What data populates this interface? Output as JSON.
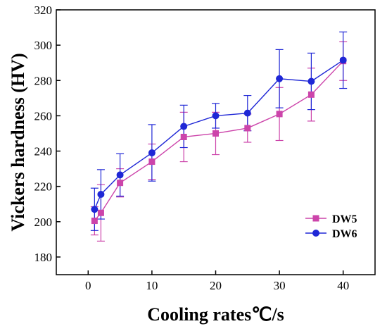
{
  "chart_data": {
    "type": "line",
    "xlabel": "Cooling rates℃/s",
    "ylabel": "Vickers hardness (HV)",
    "xlim": [
      -5,
      45
    ],
    "ylim": [
      170,
      320
    ],
    "x_ticks": [
      0,
      10,
      20,
      30,
      40
    ],
    "y_ticks": [
      180,
      200,
      220,
      240,
      260,
      280,
      300,
      320
    ],
    "x": [
      1,
      2,
      5,
      10,
      15,
      20,
      25,
      30,
      35,
      40
    ],
    "legend_position": "bottom-right",
    "grid": false,
    "series": [
      {
        "name": "DW5",
        "color": "#cc44aa",
        "marker": "square",
        "values": [
          200.5,
          205,
          222,
          234,
          248,
          250,
          253,
          261,
          272,
          291
        ],
        "errors": [
          8,
          16,
          8,
          10,
          14,
          12,
          8,
          15,
          15,
          11
        ]
      },
      {
        "name": "DW6",
        "color": "#1f27d6",
        "marker": "circle",
        "values": [
          207,
          215.5,
          226.5,
          239,
          254,
          260,
          261.5,
          281,
          279.5,
          291.5
        ],
        "errors": [
          12,
          14,
          12,
          16,
          12,
          7,
          10,
          16.5,
          16,
          16
        ]
      }
    ]
  }
}
